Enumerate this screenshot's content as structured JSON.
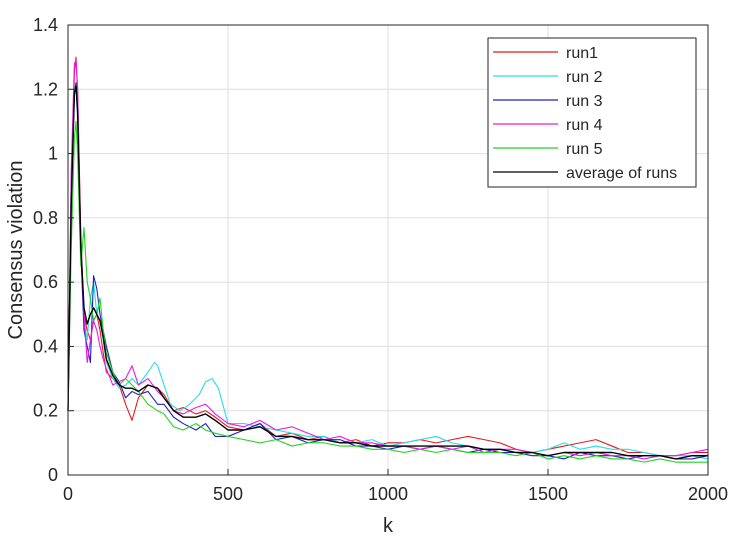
{
  "chart_data": {
    "type": "line",
    "xlabel": "k",
    "ylabel": "Consensus violation",
    "xlim": [
      0,
      2000
    ],
    "ylim": [
      0,
      1.4
    ],
    "xticks": [
      0,
      500,
      1000,
      1500,
      2000
    ],
    "xtick_labels": [
      "0",
      "500",
      "1000",
      "1500",
      "2000"
    ],
    "yticks": [
      0,
      0.2,
      0.4,
      0.6,
      0.8,
      1,
      1.2,
      1.4
    ],
    "ytick_labels": [
      "0",
      "0.2",
      "0.4",
      "0.6",
      "0.8",
      "1",
      "1.2",
      "1.4"
    ],
    "grid": true,
    "legend_position": "top-right",
    "series": [
      {
        "name": "run1",
        "color": "#e8191c",
        "x": [
          0,
          10,
          20,
          25,
          30,
          40,
          50,
          60,
          70,
          80,
          90,
          100,
          110,
          120,
          140,
          160,
          180,
          200,
          220,
          250,
          280,
          300,
          330,
          360,
          400,
          430,
          460,
          500,
          550,
          600,
          650,
          700,
          750,
          800,
          850,
          900,
          950,
          1000,
          1050,
          1100,
          1150,
          1200,
          1250,
          1300,
          1350,
          1400,
          1450,
          1500,
          1550,
          1600,
          1650,
          1700,
          1750,
          1800,
          1850,
          1900,
          1950,
          2000
        ],
        "y": [
          0.2,
          0.85,
          1.25,
          1.3,
          1.2,
          0.75,
          0.5,
          0.45,
          0.42,
          0.48,
          0.5,
          0.45,
          0.38,
          0.32,
          0.3,
          0.28,
          0.22,
          0.17,
          0.24,
          0.28,
          0.27,
          0.25,
          0.2,
          0.21,
          0.19,
          0.2,
          0.18,
          0.15,
          0.14,
          0.16,
          0.12,
          0.13,
          0.11,
          0.12,
          0.1,
          0.11,
          0.09,
          0.1,
          0.1,
          0.11,
          0.1,
          0.11,
          0.12,
          0.11,
          0.1,
          0.08,
          0.07,
          0.08,
          0.09,
          0.1,
          0.11,
          0.09,
          0.07,
          0.07,
          0.06,
          0.06,
          0.07,
          0.07
        ]
      },
      {
        "name": "run 2",
        "color": "#21e0e8",
        "x": [
          0,
          10,
          20,
          25,
          30,
          40,
          50,
          60,
          70,
          80,
          90,
          100,
          110,
          120,
          140,
          160,
          180,
          200,
          220,
          250,
          270,
          280,
          300,
          320,
          350,
          380,
          410,
          430,
          450,
          470,
          500,
          550,
          600,
          650,
          700,
          750,
          800,
          850,
          900,
          950,
          1000,
          1050,
          1100,
          1150,
          1200,
          1250,
          1300,
          1350,
          1400,
          1450,
          1500,
          1550,
          1600,
          1650,
          1700,
          1750,
          1800,
          1850,
          1900,
          1950,
          2000
        ],
        "y": [
          0.2,
          0.8,
          1.2,
          1.22,
          1.1,
          0.7,
          0.48,
          0.42,
          0.55,
          0.6,
          0.5,
          0.48,
          0.42,
          0.35,
          0.3,
          0.27,
          0.28,
          0.3,
          0.28,
          0.32,
          0.35,
          0.34,
          0.28,
          0.22,
          0.2,
          0.22,
          0.25,
          0.29,
          0.3,
          0.27,
          0.16,
          0.16,
          0.15,
          0.14,
          0.13,
          0.12,
          0.12,
          0.1,
          0.1,
          0.11,
          0.09,
          0.1,
          0.11,
          0.12,
          0.1,
          0.09,
          0.08,
          0.08,
          0.07,
          0.07,
          0.08,
          0.1,
          0.08,
          0.09,
          0.08,
          0.08,
          0.07,
          0.06,
          0.06,
          0.06,
          0.05
        ]
      },
      {
        "name": "run 3",
        "color": "#1f1fc4",
        "x": [
          0,
          10,
          20,
          25,
          30,
          40,
          50,
          60,
          70,
          80,
          90,
          100,
          110,
          120,
          140,
          160,
          180,
          200,
          220,
          250,
          280,
          300,
          330,
          360,
          400,
          430,
          460,
          500,
          550,
          600,
          650,
          700,
          750,
          800,
          850,
          900,
          950,
          1000,
          1050,
          1100,
          1150,
          1200,
          1250,
          1300,
          1350,
          1400,
          1450,
          1500,
          1550,
          1600,
          1650,
          1700,
          1750,
          1800,
          1850,
          1900,
          1950,
          2000
        ],
        "y": [
          0.2,
          0.9,
          1.18,
          1.22,
          1.15,
          0.7,
          0.45,
          0.4,
          0.35,
          0.62,
          0.58,
          0.5,
          0.45,
          0.4,
          0.32,
          0.29,
          0.24,
          0.26,
          0.25,
          0.26,
          0.22,
          0.22,
          0.18,
          0.16,
          0.14,
          0.16,
          0.12,
          0.12,
          0.14,
          0.16,
          0.11,
          0.12,
          0.1,
          0.11,
          0.11,
          0.09,
          0.09,
          0.08,
          0.09,
          0.08,
          0.09,
          0.08,
          0.07,
          0.08,
          0.07,
          0.07,
          0.06,
          0.06,
          0.05,
          0.07,
          0.06,
          0.06,
          0.05,
          0.06,
          0.06,
          0.05,
          0.05,
          0.06
        ]
      },
      {
        "name": "run 4",
        "color": "#e81ce8",
        "x": [
          0,
          10,
          20,
          25,
          30,
          40,
          50,
          60,
          70,
          80,
          90,
          100,
          110,
          120,
          140,
          160,
          180,
          200,
          220,
          250,
          280,
          300,
          330,
          360,
          400,
          430,
          460,
          500,
          550,
          600,
          650,
          700,
          750,
          800,
          850,
          900,
          950,
          1000,
          1050,
          1100,
          1150,
          1200,
          1250,
          1300,
          1350,
          1400,
          1450,
          1500,
          1550,
          1600,
          1650,
          1700,
          1750,
          1800,
          1850,
          1900,
          1950,
          2000
        ],
        "y": [
          0.2,
          0.95,
          1.28,
          1.29,
          1.2,
          0.72,
          0.5,
          0.35,
          0.42,
          0.48,
          0.45,
          0.4,
          0.36,
          0.33,
          0.28,
          0.29,
          0.3,
          0.34,
          0.28,
          0.3,
          0.26,
          0.24,
          0.2,
          0.19,
          0.21,
          0.22,
          0.19,
          0.16,
          0.15,
          0.17,
          0.14,
          0.15,
          0.13,
          0.11,
          0.12,
          0.1,
          0.1,
          0.09,
          0.09,
          0.08,
          0.09,
          0.08,
          0.09,
          0.07,
          0.08,
          0.08,
          0.07,
          0.06,
          0.07,
          0.06,
          0.07,
          0.06,
          0.06,
          0.05,
          0.06,
          0.06,
          0.07,
          0.08
        ]
      },
      {
        "name": "run 5",
        "color": "#22d322",
        "x": [
          0,
          10,
          20,
          25,
          30,
          40,
          50,
          60,
          70,
          80,
          90,
          100,
          110,
          120,
          140,
          160,
          180,
          200,
          220,
          250,
          280,
          300,
          330,
          360,
          400,
          430,
          460,
          500,
          550,
          600,
          650,
          700,
          750,
          800,
          850,
          900,
          950,
          1000,
          1050,
          1100,
          1150,
          1200,
          1250,
          1300,
          1350,
          1400,
          1450,
          1500,
          1550,
          1600,
          1650,
          1700,
          1750,
          1800,
          1850,
          1900,
          1950,
          2000
        ],
        "y": [
          0.2,
          0.7,
          1.05,
          1.1,
          1.0,
          0.65,
          0.77,
          0.6,
          0.55,
          0.48,
          0.5,
          0.55,
          0.45,
          0.38,
          0.32,
          0.28,
          0.3,
          0.28,
          0.26,
          0.22,
          0.2,
          0.19,
          0.15,
          0.14,
          0.16,
          0.14,
          0.13,
          0.12,
          0.11,
          0.1,
          0.11,
          0.09,
          0.1,
          0.1,
          0.09,
          0.09,
          0.08,
          0.08,
          0.07,
          0.08,
          0.07,
          0.08,
          0.07,
          0.07,
          0.07,
          0.06,
          0.07,
          0.05,
          0.06,
          0.05,
          0.06,
          0.05,
          0.05,
          0.04,
          0.05,
          0.04,
          0.04,
          0.04
        ]
      },
      {
        "name": "average of runs",
        "color": "#000000",
        "x": [
          0,
          10,
          20,
          25,
          30,
          40,
          50,
          60,
          70,
          80,
          90,
          100,
          110,
          120,
          140,
          160,
          180,
          200,
          220,
          250,
          280,
          300,
          330,
          360,
          400,
          430,
          460,
          500,
          550,
          600,
          650,
          700,
          750,
          800,
          850,
          900,
          950,
          1000,
          1050,
          1100,
          1150,
          1200,
          1250,
          1300,
          1350,
          1400,
          1450,
          1500,
          1550,
          1600,
          1650,
          1700,
          1750,
          1800,
          1850,
          1900,
          1950,
          2000
        ],
        "y": [
          0.2,
          0.84,
          1.19,
          1.21,
          1.13,
          0.71,
          0.52,
          0.47,
          0.5,
          0.52,
          0.5,
          0.48,
          0.43,
          0.36,
          0.31,
          0.28,
          0.27,
          0.27,
          0.26,
          0.28,
          0.27,
          0.24,
          0.2,
          0.18,
          0.18,
          0.19,
          0.17,
          0.14,
          0.14,
          0.15,
          0.12,
          0.12,
          0.11,
          0.11,
          0.1,
          0.1,
          0.09,
          0.09,
          0.09,
          0.09,
          0.09,
          0.09,
          0.09,
          0.08,
          0.08,
          0.07,
          0.07,
          0.06,
          0.07,
          0.07,
          0.07,
          0.07,
          0.06,
          0.06,
          0.06,
          0.05,
          0.06,
          0.06
        ]
      }
    ]
  }
}
